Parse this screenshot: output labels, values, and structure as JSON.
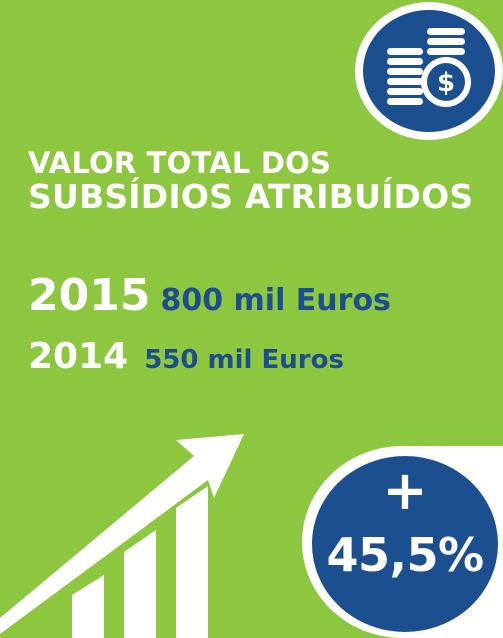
{
  "colors": {
    "background": "#8dc63f",
    "accent": "#1b4f8f",
    "text_light": "#ffffff"
  },
  "icons": {
    "coins": "coins-dollar-icon",
    "growth": "growth-arrow-chart-icon"
  },
  "title": {
    "line1": "VALOR TOTAL DOS",
    "line2": "SUBSÍDIOS ATRIBUÍDOS"
  },
  "entries": [
    {
      "year": "2015",
      "amount": "800 mil Euros"
    },
    {
      "year": "2014",
      "amount": "550 mil Euros"
    }
  ],
  "change": {
    "sign": "+",
    "value": "45,5%"
  }
}
